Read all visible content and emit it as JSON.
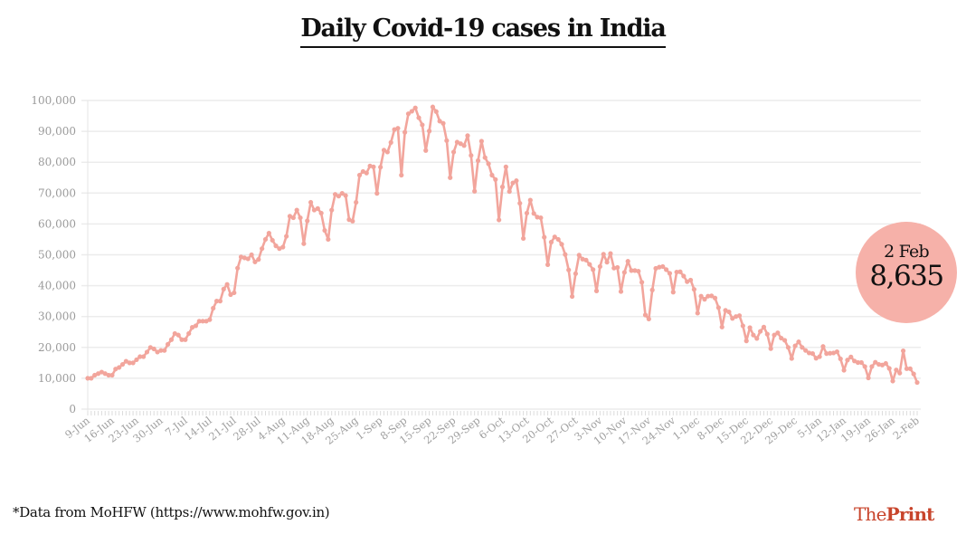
{
  "chart_data": {
    "type": "line",
    "title": "Daily Covid-19 cases in India",
    "xlabel": "",
    "ylabel": "",
    "ylim": [
      0,
      100000
    ],
    "y_ticks": [
      "0",
      "10,000",
      "20,000",
      "30,000",
      "40,000",
      "50,000",
      "60,000",
      "70,000",
      "80,000",
      "90,000",
      "100,000"
    ],
    "x_ticks": [
      "9-Jun",
      "16-Jun",
      "23-Jun",
      "30-Jun",
      "7-Jul",
      "14-Jul",
      "21-Jul",
      "28-Jul",
      "4-Aug",
      "11-Aug",
      "18-Aug",
      "25-Aug",
      "1-Sep",
      "8-Sep",
      "15-Sep",
      "22-Sep",
      "29-Sep",
      "6-Oct",
      "13-Oct",
      "20-Oct",
      "27-Oct",
      "3-Nov",
      "10-Nov",
      "17-Nov",
      "24-Nov",
      "1-Dec",
      "8-Dec",
      "15-Dec",
      "22-Dec",
      "29-Dec",
      "5-Jan",
      "12-Jan",
      "19-Jan",
      "26-Jan",
      "2-Feb"
    ],
    "x_start": "9-Jun",
    "x_end": "2-Feb",
    "grid": true,
    "series_color": "#f2a59c",
    "values": [
      10000,
      10000,
      11000,
      11500,
      12000,
      11500,
      11000,
      11000,
      13000,
      13500,
      14500,
      15500,
      15000,
      15000,
      16000,
      17000,
      17000,
      18500,
      20000,
      19500,
      18500,
      19000,
      19000,
      21000,
      22500,
      24500,
      24000,
      22500,
      22500,
      24500,
      26500,
      27000,
      28500,
      28500,
      28500,
      29000,
      32700,
      35000,
      35000,
      38900,
      40400,
      37100,
      37700,
      45700,
      49300,
      49000,
      48700,
      50000,
      47700,
      48500,
      52000,
      55000,
      57000,
      54700,
      52900,
      52000,
      52500,
      56000,
      62500,
      62000,
      64500,
      62000,
      53600,
      61000,
      67000,
      64500,
      65000,
      63500,
      57900,
      55000,
      64500,
      69600,
      69000,
      69900,
      69200,
      61400,
      60900,
      67000,
      75800,
      77000,
      76500,
      78800,
      78500,
      69900,
      78400,
      83900,
      83300,
      86400,
      90600,
      91000,
      75800,
      89700,
      95700,
      96500,
      97600,
      94400,
      92100,
      83800,
      90100,
      97900,
      96400,
      93300,
      92600,
      87000,
      75000,
      83300,
      86500,
      86000,
      85400,
      88600,
      82200,
      70600,
      80500,
      86800,
      81500,
      79500,
      75800,
      74400,
      61300,
      72000,
      78500,
      70500,
      73300,
      74000,
      66700,
      55300,
      63500,
      67700,
      63400,
      62200,
      62000,
      55700,
      46800,
      54100,
      55800,
      55000,
      53400,
      50100,
      45100,
      36500,
      43900,
      49900,
      48600,
      48300,
      46900,
      45200,
      38300,
      46200,
      50200,
      47600,
      50400,
      45700,
      45900,
      38100,
      44300,
      47900,
      44900,
      44900,
      44700,
      41100,
      30500,
      29200,
      38600,
      45600,
      46000,
      46200,
      45200,
      44000,
      37900,
      44400,
      44500,
      43100,
      41300,
      41800,
      38800,
      31100,
      36600,
      35600,
      36600,
      36700,
      36000,
      32900,
      26600,
      32000,
      31500,
      29400,
      30000,
      30300,
      27000,
      22100,
      26400,
      24000,
      22900,
      25200,
      26600,
      24300,
      19600,
      24000,
      24700,
      23000,
      22300,
      20000,
      16400,
      20500,
      21800,
      20000,
      19000,
      18200,
      18000,
      16500,
      17000,
      20300,
      18000,
      18100,
      18200,
      18600,
      16300,
      12600,
      15900,
      16900,
      15600,
      15100,
      15100,
      13800,
      10100,
      13800,
      15200,
      14500,
      14300,
      14800,
      13200,
      9100,
      12700,
      11700,
      18900,
      13100,
      13100,
      11400,
      8635
    ],
    "annotation": {
      "date": "2 Feb",
      "value": "8,635",
      "color": "#f6b1a9"
    }
  },
  "footer": {
    "source": "*Data from MoHFW (https://www.mohfw.gov.in)"
  },
  "logo": {
    "part1": "The",
    "part2": "Print",
    "color": "#c8452c"
  }
}
